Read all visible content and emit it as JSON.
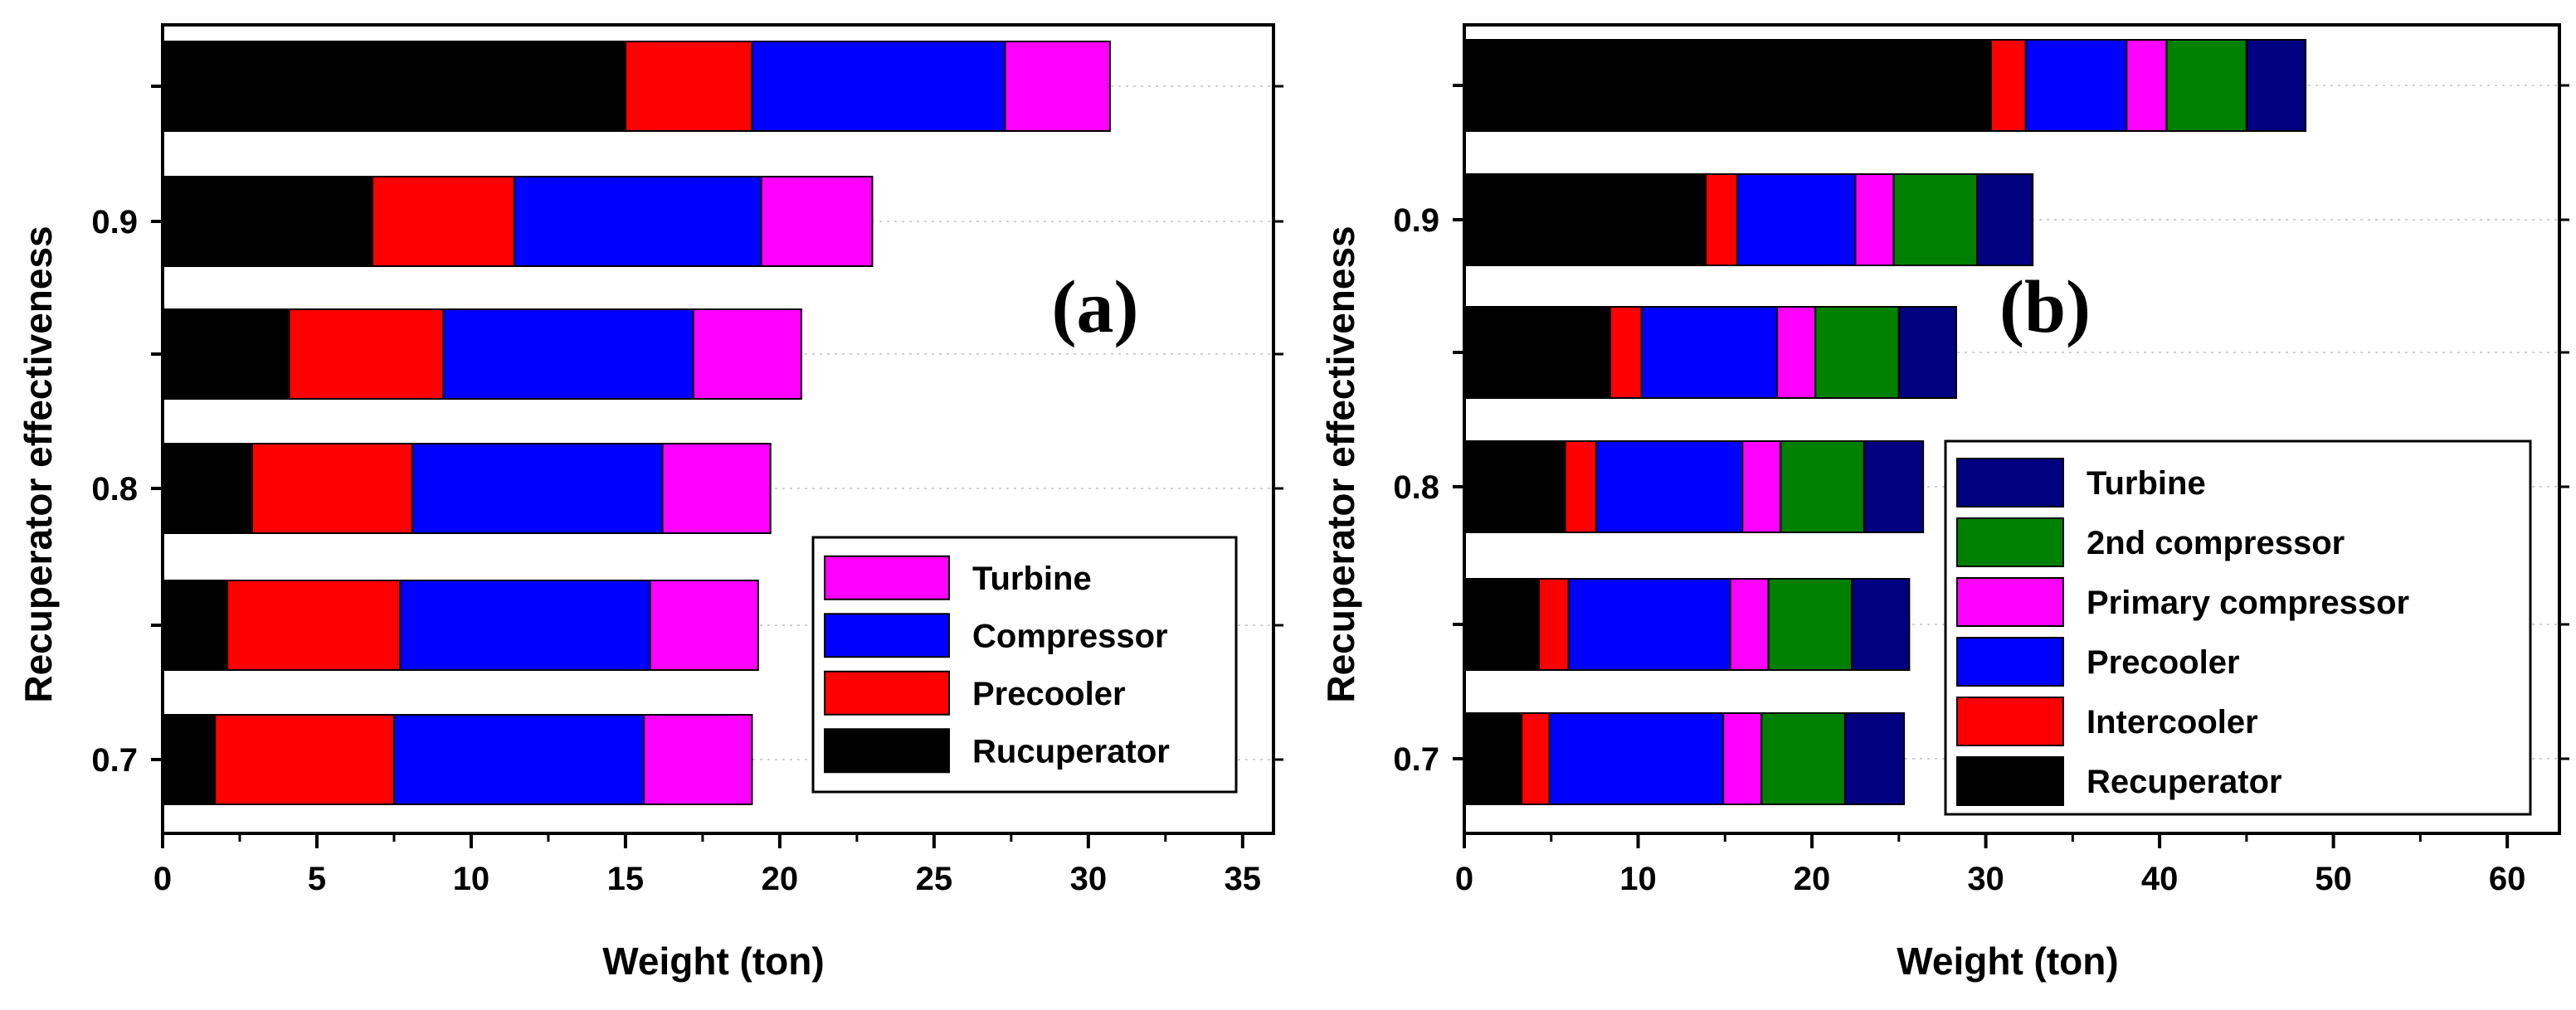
{
  "figure": {
    "background": "#ffffff"
  },
  "chart_data": [
    {
      "type": "stacked-horizontal-bar",
      "panel_label": "(a)",
      "xlabel": "Weight (ton)",
      "ylabel": "Recuperator effectiveness",
      "xlim": [
        0,
        36
      ],
      "xticks": [
        0,
        5,
        10,
        15,
        20,
        25,
        30,
        35
      ],
      "xtick_labels": [
        "0",
        "5",
        "10",
        "15",
        "20",
        "25",
        "30",
        "35"
      ],
      "categories": [
        "0.7",
        "0.75",
        "0.8",
        "0.85",
        "0.9",
        "0.95"
      ],
      "ytick_labels": [
        "0.7",
        "",
        "0.8",
        "",
        "0.9",
        ""
      ],
      "legend_placement": "bottom-right",
      "legend_order": [
        "Turbine",
        "Compressor",
        "Precooler",
        "Rucuperator"
      ],
      "series": [
        {
          "name": "Rucuperator",
          "color": "#000000",
          "values": [
            1.7,
            2.1,
            2.9,
            4.1,
            6.8,
            15.0
          ]
        },
        {
          "name": "Precooler",
          "color": "#ff0000",
          "values": [
            5.8,
            5.6,
            5.2,
            5.0,
            4.6,
            4.1
          ]
        },
        {
          "name": "Compressor",
          "color": "#0000ff",
          "values": [
            8.1,
            8.1,
            8.1,
            8.1,
            8.0,
            8.2
          ]
        },
        {
          "name": "Turbine",
          "color": "#ff00ff",
          "values": [
            3.5,
            3.5,
            3.5,
            3.5,
            3.6,
            3.4
          ]
        }
      ]
    },
    {
      "type": "stacked-horizontal-bar",
      "panel_label": "(b)",
      "xlabel": "Weight (ton)",
      "ylabel": "Recuperator effectiveness",
      "xlim": [
        0,
        63
      ],
      "xticks": [
        0,
        10,
        20,
        30,
        40,
        50,
        60
      ],
      "xtick_labels": [
        "0",
        "10",
        "20",
        "30",
        "40",
        "50",
        "60"
      ],
      "categories": [
        "0.7",
        "0.75",
        "0.8",
        "0.85",
        "0.9",
        "0.95"
      ],
      "ytick_labels": [
        "0.7",
        "",
        "0.8",
        "",
        "0.9",
        ""
      ],
      "legend_placement": "center-right",
      "legend_order": [
        "Turbine",
        "2nd compressor",
        "Primary compressor",
        "Precooler",
        "Intercooler",
        "Recuperator"
      ],
      "series": [
        {
          "name": "Recuperator",
          "color": "#000000",
          "values": [
            3.3,
            4.3,
            5.8,
            8.4,
            13.9,
            30.3
          ]
        },
        {
          "name": "Intercooler",
          "color": "#ff0000",
          "values": [
            1.6,
            1.7,
            1.8,
            1.8,
            1.8,
            2.0
          ]
        },
        {
          "name": "Precooler",
          "color": "#0000ff",
          "values": [
            10.0,
            9.3,
            8.4,
            7.8,
            6.8,
            5.8
          ]
        },
        {
          "name": "Primary compressor",
          "color": "#ff00ff",
          "values": [
            2.2,
            2.2,
            2.2,
            2.2,
            2.2,
            2.3
          ]
        },
        {
          "name": "2nd compressor",
          "color": "#008000",
          "values": [
            4.8,
            4.8,
            4.8,
            4.8,
            4.8,
            4.6
          ]
        },
        {
          "name": "Turbine",
          "color": "#000080",
          "values": [
            3.4,
            3.3,
            3.4,
            3.3,
            3.2,
            3.4
          ]
        }
      ]
    }
  ]
}
